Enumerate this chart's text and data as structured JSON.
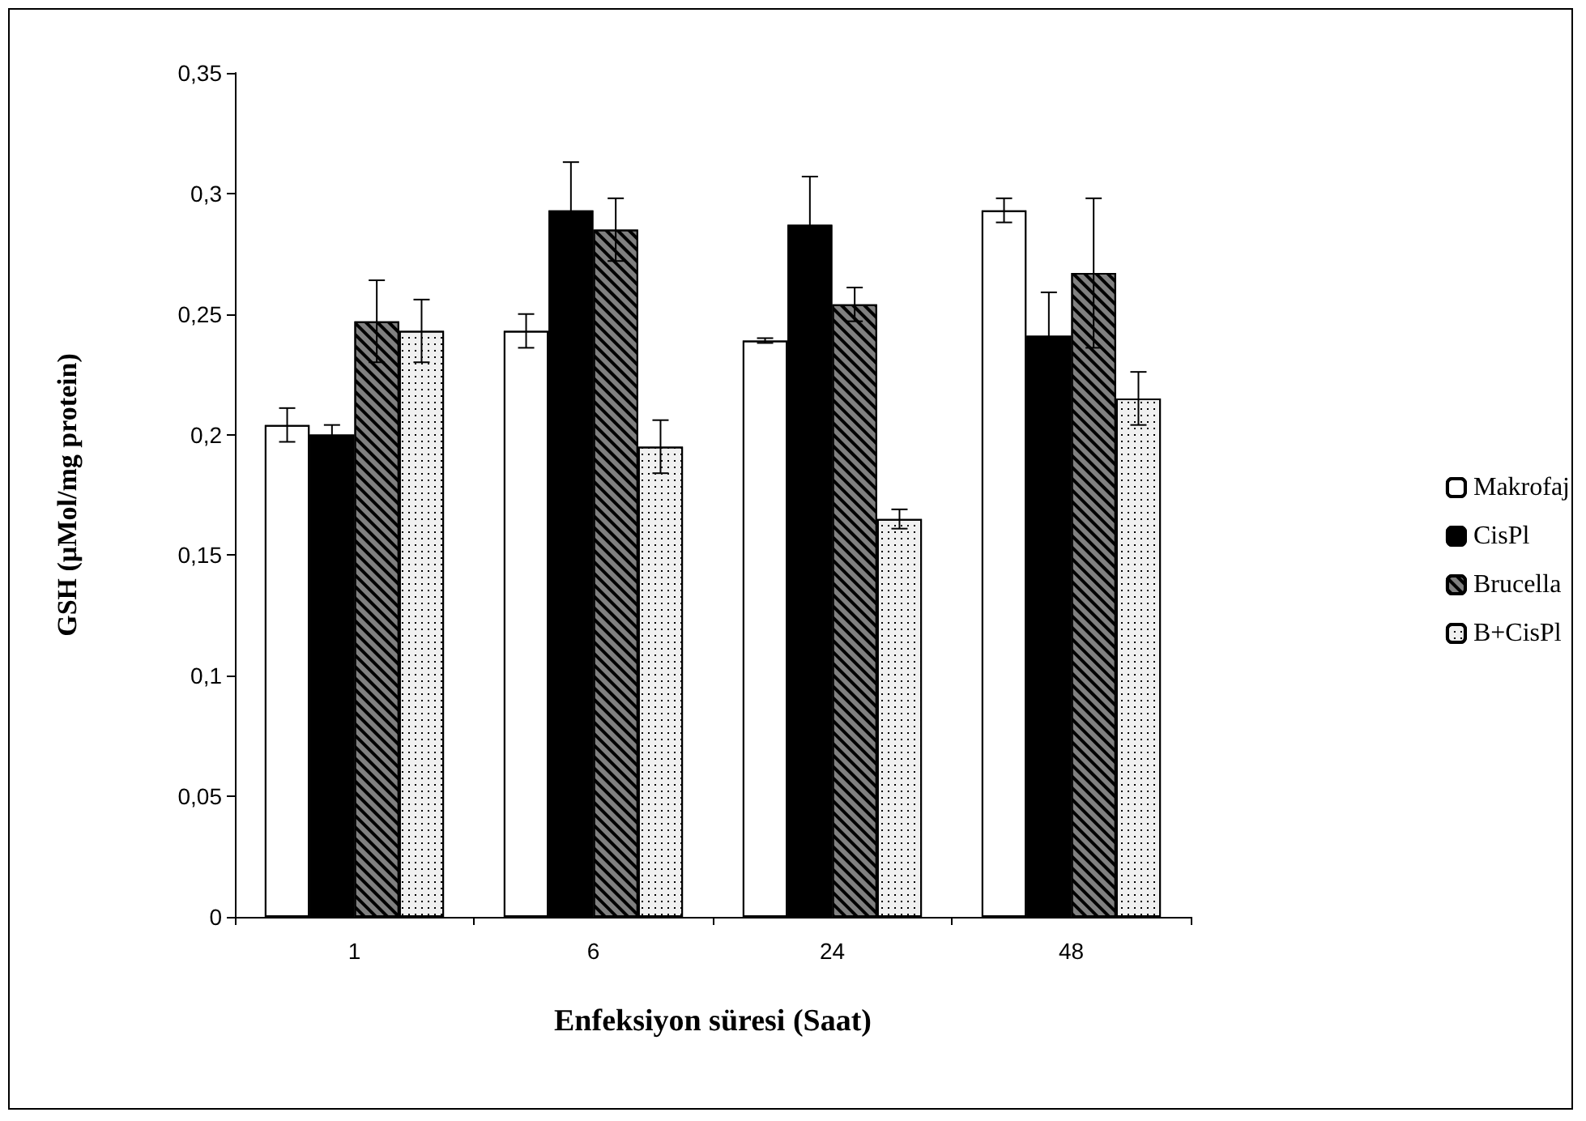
{
  "chart_data": {
    "type": "bar",
    "xlabel": "Enfeksiyon süresi (Saat)",
    "ylabel": "GSH (µMol/mg protein)",
    "categories": [
      "1",
      "6",
      "24",
      "48"
    ],
    "series": [
      {
        "name": "Makrofaj",
        "color": "#ffffff",
        "values": [
          0.204,
          0.243,
          0.239,
          0.293
        ],
        "errors": [
          0.007,
          0.007,
          0.001,
          0.005
        ]
      },
      {
        "name": "CisPl",
        "color": "#000000",
        "values": [
          0.2,
          0.293,
          0.287,
          0.241
        ],
        "errors": [
          0.004,
          0.02,
          0.02,
          0.018
        ]
      },
      {
        "name": "Brucella",
        "color": "#808080",
        "values": [
          0.247,
          0.285,
          0.254,
          0.267
        ],
        "errors": [
          0.017,
          0.013,
          0.007,
          0.031
        ]
      },
      {
        "name": "B+CisPl",
        "color": "#f0f0f0",
        "values": [
          0.243,
          0.195,
          0.165,
          0.215
        ],
        "errors": [
          0.013,
          0.011,
          0.004,
          0.011
        ]
      }
    ],
    "ylim": [
      0,
      0.35
    ],
    "yticks": [
      {
        "value": 0,
        "label": "0"
      },
      {
        "value": 0.05,
        "label": "0,05"
      },
      {
        "value": 0.1,
        "label": "0,1"
      },
      {
        "value": 0.15,
        "label": "0,15"
      },
      {
        "value": 0.2,
        "label": "0,2"
      },
      {
        "value": 0.25,
        "label": "0,25"
      },
      {
        "value": 0.3,
        "label": "0,3"
      },
      {
        "value": 0.35,
        "label": "0,35"
      }
    ],
    "grid": false,
    "legend": "right"
  }
}
